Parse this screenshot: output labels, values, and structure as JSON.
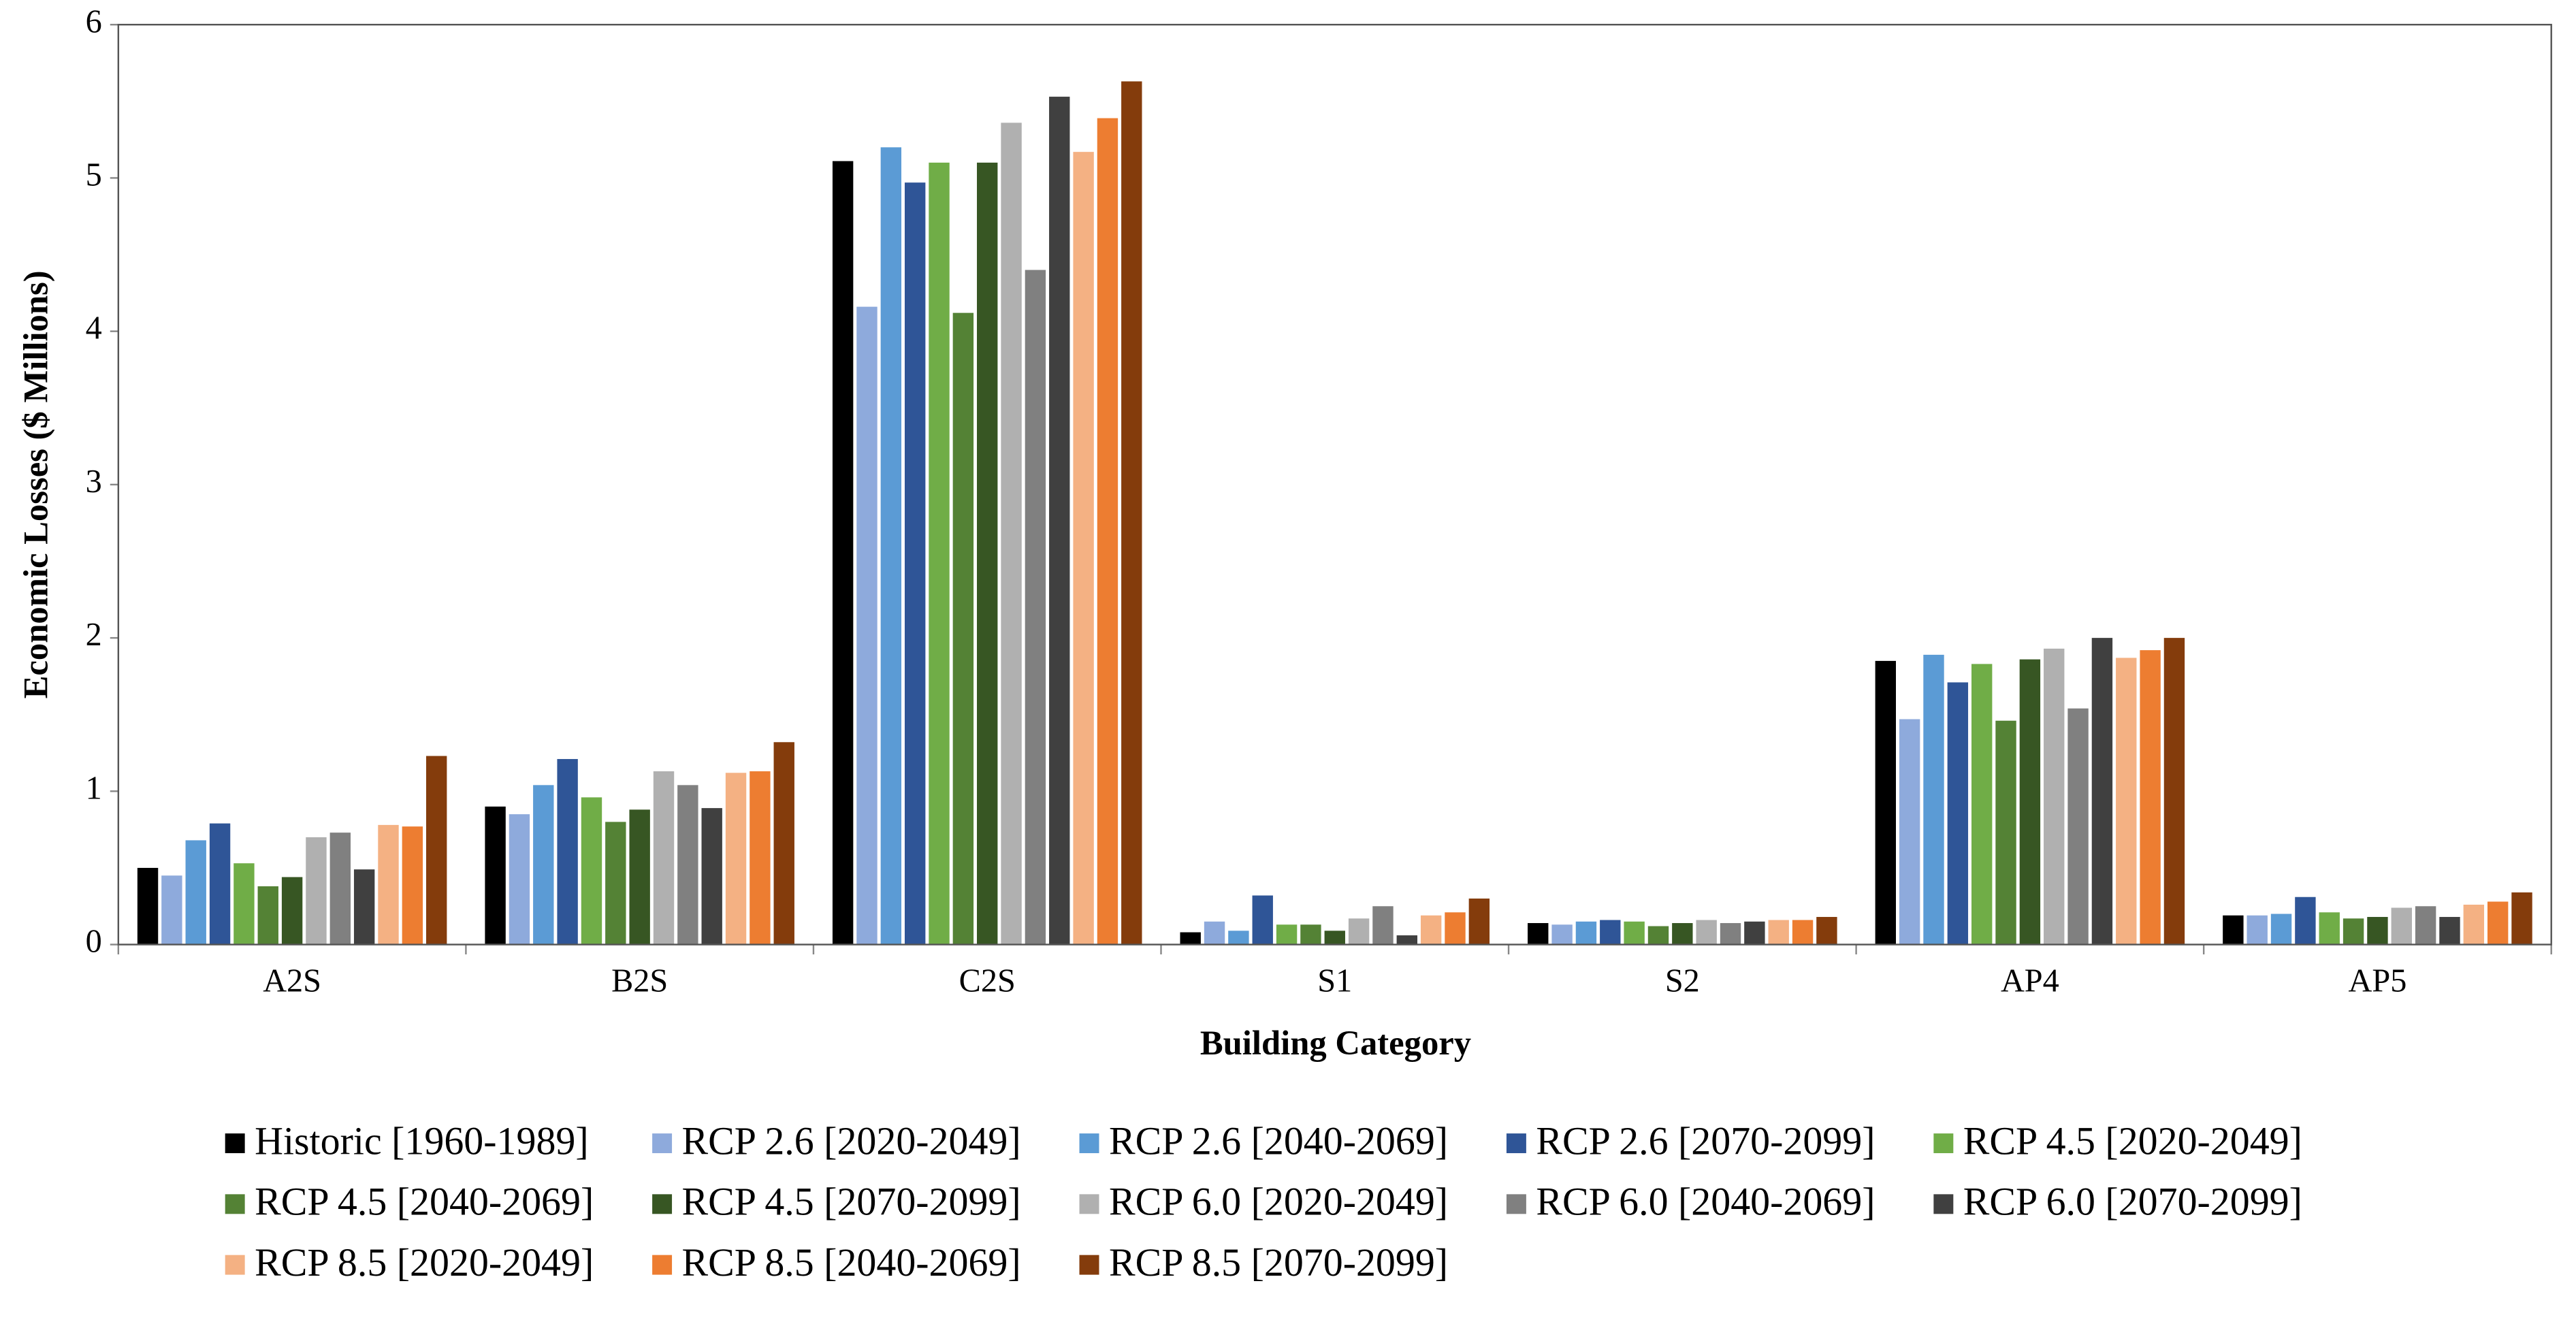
{
  "chart_data": {
    "type": "bar",
    "y_label": "Economic Losses ($ Millions)",
    "x_label": "Building Category",
    "categories": [
      "A2S",
      "B2S",
      "C2S",
      "S1",
      "S2",
      "AP4",
      "AP5"
    ],
    "ylim": [
      0,
      6
    ],
    "yticks": [
      0,
      1,
      2,
      3,
      4,
      5,
      6
    ],
    "grid": false,
    "legend": "bottom",
    "series": [
      {
        "name": "Historic [1960-1989]",
        "color": "#000000",
        "values": [
          0.5,
          0.9,
          5.11,
          0.08,
          0.14,
          1.85,
          0.19
        ]
      },
      {
        "name": "RCP 2.6 [2020-2049]",
        "color": "#8eaadc",
        "values": [
          0.45,
          0.85,
          4.16,
          0.15,
          0.13,
          1.47,
          0.19
        ]
      },
      {
        "name": "RCP 2.6 [2040-2069]",
        "color": "#5b9bd5",
        "values": [
          0.68,
          1.04,
          5.2,
          0.09,
          0.15,
          1.89,
          0.2
        ]
      },
      {
        "name": "RCP 2.6 [2070-2099]",
        "color": "#2f5597",
        "values": [
          0.79,
          1.21,
          4.97,
          0.32,
          0.16,
          1.71,
          0.31
        ]
      },
      {
        "name": "RCP 4.5 [2020-2049]",
        "color": "#70ad47",
        "values": [
          0.53,
          0.96,
          5.1,
          0.13,
          0.15,
          1.83,
          0.21
        ]
      },
      {
        "name": "RCP 4.5 [2040-2069]",
        "color": "#548235",
        "values": [
          0.38,
          0.8,
          4.12,
          0.13,
          0.12,
          1.46,
          0.17
        ]
      },
      {
        "name": "RCP 4.5 [2070-2099]",
        "color": "#375623",
        "values": [
          0.44,
          0.88,
          5.1,
          0.09,
          0.14,
          1.86,
          0.18
        ]
      },
      {
        "name": "RCP 6.0 [2020-2049]",
        "color": "#b0b0b0",
        "values": [
          0.7,
          1.13,
          5.36,
          0.17,
          0.16,
          1.93,
          0.24
        ]
      },
      {
        "name": "RCP 6.0 [2040-2069]",
        "color": "#808080",
        "values": [
          0.73,
          1.04,
          4.4,
          0.25,
          0.14,
          1.54,
          0.25
        ]
      },
      {
        "name": "RCP 6.0 [2070-2099]",
        "color": "#404040",
        "values": [
          0.49,
          0.89,
          5.53,
          0.06,
          0.15,
          2.0,
          0.18
        ]
      },
      {
        "name": "RCP 8.5 [2020-2049]",
        "color": "#f4b183",
        "values": [
          0.78,
          1.12,
          5.17,
          0.19,
          0.16,
          1.87,
          0.26
        ]
      },
      {
        "name": "RCP 8.5 [2040-2069]",
        "color": "#ed7d31",
        "values": [
          0.77,
          1.13,
          5.39,
          0.21,
          0.16,
          1.92,
          0.28
        ]
      },
      {
        "name": "RCP 8.5 [2070-2099]",
        "color": "#843c0c",
        "values": [
          1.23,
          1.32,
          5.63,
          0.3,
          0.18,
          2.0,
          0.34
        ]
      }
    ]
  }
}
